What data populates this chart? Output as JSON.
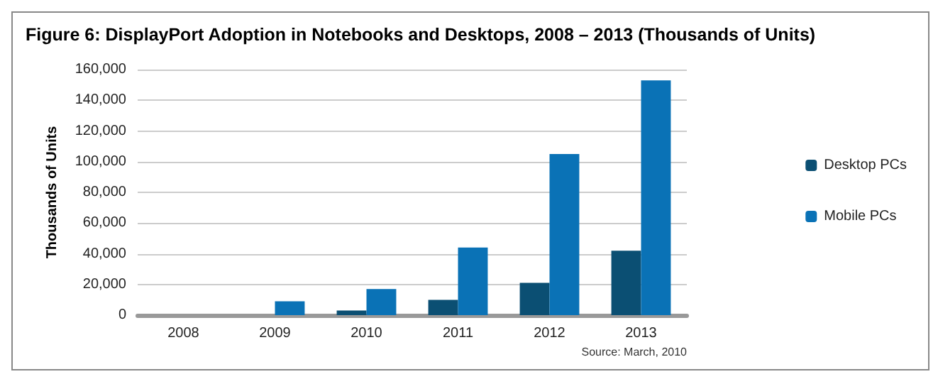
{
  "chart_data": {
    "type": "bar",
    "title": "Figure 6: DisplayPort Adoption in Notebooks and Desktops, 2008 – 2013 (Thousands of Units)",
    "ylabel": "Thousands of Units",
    "categories": [
      "2008",
      "2009",
      "2010",
      "2011",
      "2012",
      "2013"
    ],
    "series": [
      {
        "name": "Desktop PCs",
        "color": "#0b4f73",
        "values": [
          0,
          0,
          3000,
          10000,
          21000,
          42000
        ]
      },
      {
        "name": "Mobile PCs",
        "color": "#0a72b6",
        "values": [
          0,
          9000,
          17000,
          44000,
          105000,
          153000
        ]
      }
    ],
    "ylim": [
      0,
      160000
    ],
    "yticks": [
      0,
      {
        "value": 20000,
        "label": "20,000"
      },
      {
        "value": 40000,
        "label": "40,000"
      },
      {
        "value": 60000,
        "label": "60,000"
      },
      {
        "value": 80000,
        "label": "80,000"
      },
      {
        "value": 100000,
        "label": "100,000"
      },
      {
        "value": 120000,
        "label": "120,000"
      },
      {
        "value": 140000,
        "label": "140,000"
      },
      {
        "value": 160000,
        "label": "160,000"
      }
    ],
    "grid": "y",
    "legend": "right",
    "annotations": [
      "Source: March, 2010"
    ]
  }
}
